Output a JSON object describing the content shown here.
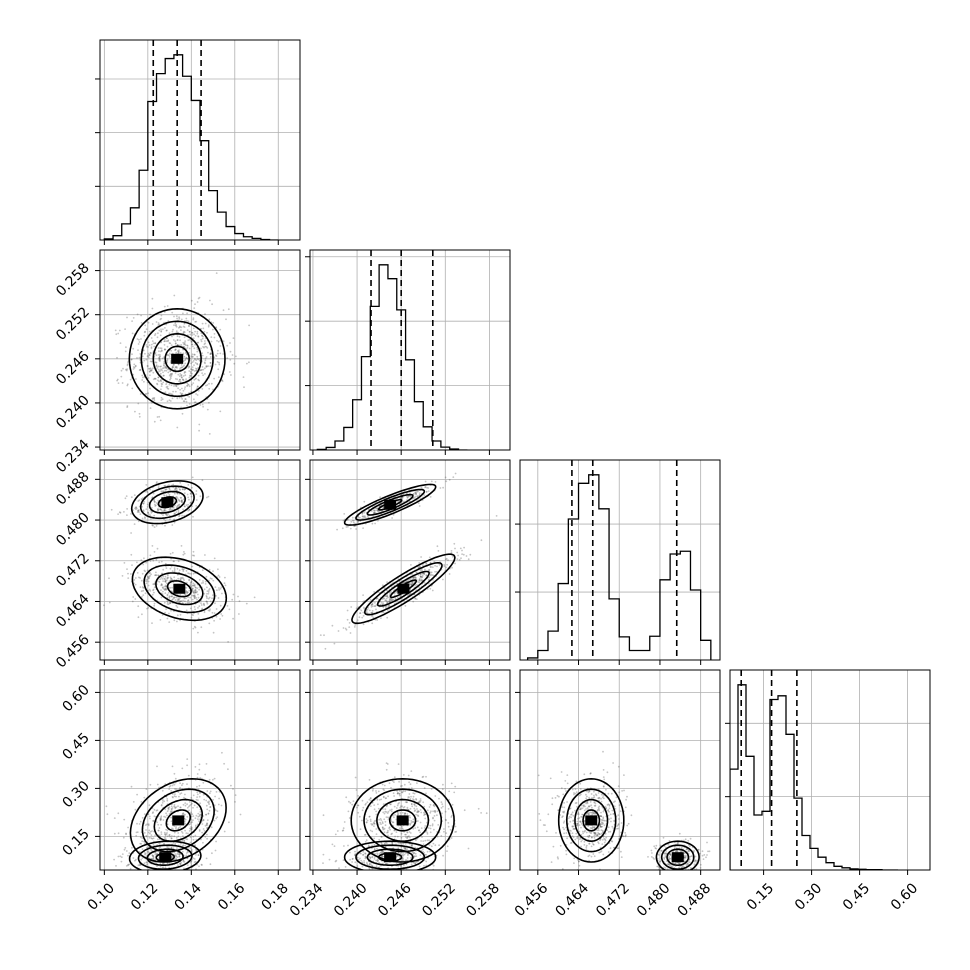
{
  "chart_data": {
    "type": "corner",
    "grid": true,
    "parameters": [
      {
        "id": "p1",
        "range": [
          0.098,
          0.19
        ],
        "ticks": [
          0.1,
          0.12,
          0.14,
          0.16,
          0.18
        ],
        "tick_labels": [
          "0.10",
          "0.12",
          "0.14",
          "0.16",
          "0.18"
        ]
      },
      {
        "id": "p2",
        "range": [
          0.2336,
          0.2608
        ],
        "ticks": [
          0.234,
          0.24,
          0.246,
          0.252,
          0.258
        ],
        "tick_labels": [
          "0.234",
          "0.240",
          "0.246",
          "0.252",
          "0.258"
        ]
      },
      {
        "id": "p3",
        "range": [
          0.4525,
          0.4918
        ],
        "ticks": [
          0.456,
          0.464,
          0.472,
          0.48,
          0.488
        ],
        "tick_labels": [
          "0.456",
          "0.464",
          "0.472",
          "0.480",
          "0.488"
        ]
      },
      {
        "id": "p4",
        "range": [
          0.045,
          0.67
        ],
        "ticks": [
          0.15,
          0.3,
          0.45,
          0.6
        ],
        "tick_labels": [
          "0.15",
          "0.30",
          "0.45",
          "0.60"
        ]
      }
    ],
    "histograms": [
      {
        "param": 0,
        "bin_edges": [
          0.1,
          0.104,
          0.108,
          0.112,
          0.116,
          0.12,
          0.124,
          0.128,
          0.132,
          0.136,
          0.14,
          0.144,
          0.148,
          0.152,
          0.156,
          0.16,
          0.164,
          0.168,
          0.172,
          0.176,
          0.18
        ],
        "counts": [
          2,
          8,
          30,
          60,
          130,
          258,
          310,
          338,
          345,
          305,
          260,
          185,
          92,
          52,
          25,
          12,
          6,
          3,
          1,
          0
        ],
        "quantiles": [
          0.1225,
          0.1335,
          0.1445
        ]
      },
      {
        "param": 1,
        "bin_edges": [
          0.2346,
          0.2358,
          0.237,
          0.2382,
          0.2394,
          0.2406,
          0.2418,
          0.243,
          0.2442,
          0.2454,
          0.2466,
          0.2478,
          0.249,
          0.2502,
          0.2514,
          0.2526,
          0.2538,
          0.255
        ],
        "counts": [
          2,
          8,
          28,
          70,
          156,
          290,
          446,
          575,
          532,
          435,
          280,
          150,
          72,
          28,
          9,
          3,
          0
        ],
        "quantiles": [
          0.2419,
          0.246,
          0.2503
        ]
      },
      {
        "param": 2,
        "bin_edges": [
          0.454,
          0.456,
          0.458,
          0.46,
          0.462,
          0.464,
          0.466,
          0.468,
          0.47,
          0.472,
          0.474,
          0.476,
          0.478,
          0.48,
          0.482,
          0.484,
          0.486,
          0.488,
          0.49
        ],
        "counts": [
          6,
          28,
          85,
          225,
          415,
          520,
          545,
          445,
          180,
          68,
          28,
          28,
          70,
          236,
          312,
          320,
          206,
          58
        ],
        "quantiles": [
          0.4627,
          0.4668,
          0.4833
        ]
      },
      {
        "param": 3,
        "bin_edges": [
          0.045,
          0.07,
          0.095,
          0.12,
          0.145,
          0.17,
          0.195,
          0.22,
          0.245,
          0.27,
          0.295,
          0.32,
          0.345,
          0.37,
          0.395,
          0.42,
          0.445,
          0.47,
          0.495,
          0.52,
          0.545,
          0.57
        ],
        "counts": [
          275,
          505,
          310,
          150,
          160,
          465,
          475,
          370,
          196,
          94,
          59,
          35,
          20,
          10,
          6,
          3,
          2,
          1,
          1,
          0,
          0
        ],
        "quantiles": [
          0.08,
          0.175,
          0.254
        ]
      }
    ],
    "scatter_panels": [
      {
        "x": 0,
        "y": 1,
        "clusters": [
          {
            "mean": [
              0.1335,
              0.246
            ],
            "sd": [
              0.011,
              0.0034
            ],
            "corr": 0.0,
            "n": 900
          }
        ]
      },
      {
        "x": 0,
        "y": 2,
        "clusters": [
          {
            "mean": [
              0.129,
              0.4835
            ],
            "sd": [
              0.0082,
              0.0021
            ],
            "corr": 0.3,
            "n": 340
          },
          {
            "mean": [
              0.1345,
              0.4665
            ],
            "sd": [
              0.0108,
              0.0031
            ],
            "corr": -0.3,
            "n": 560
          }
        ]
      },
      {
        "x": 1,
        "y": 2,
        "clusters": [
          {
            "mean": [
              0.2445,
              0.483
            ],
            "sd": [
              0.0031,
              0.002
            ],
            "corr": 0.88,
            "n": 340
          },
          {
            "mean": [
              0.2463,
              0.4665
            ],
            "sd": [
              0.0035,
              0.0034
            ],
            "corr": 0.9,
            "n": 560
          }
        ]
      },
      {
        "x": 0,
        "y": 3,
        "clusters": [
          {
            "mean": [
              0.134,
              0.2
            ],
            "sd": [
              0.011,
              0.065
            ],
            "corr": 0.3,
            "n": 560
          },
          {
            "mean": [
              0.128,
              0.085
            ],
            "sd": [
              0.0082,
              0.025
            ],
            "corr": 0.1,
            "n": 340
          }
        ]
      },
      {
        "x": 1,
        "y": 3,
        "clusters": [
          {
            "mean": [
              0.2462,
              0.2
            ],
            "sd": [
              0.0035,
              0.065
            ],
            "corr": 0.0,
            "n": 560
          },
          {
            "mean": [
              0.2445,
              0.085
            ],
            "sd": [
              0.0031,
              0.025
            ],
            "corr": 0.0,
            "n": 340
          }
        ]
      },
      {
        "x": 2,
        "y": 3,
        "clusters": [
          {
            "mean": [
              0.4665,
              0.2
            ],
            "sd": [
              0.0032,
              0.065
            ],
            "corr": 0.0,
            "n": 560
          },
          {
            "mean": [
              0.4835,
              0.085
            ],
            "sd": [
              0.0021,
              0.025
            ],
            "corr": 0.0,
            "n": 340
          }
        ]
      }
    ],
    "contour_levels_sigma": [
      0.5,
      1.0,
      1.5,
      2.0
    ]
  }
}
